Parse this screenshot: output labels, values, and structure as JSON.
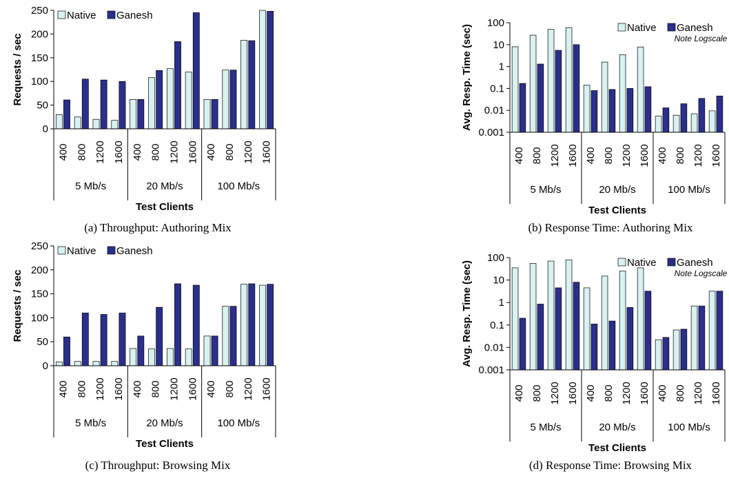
{
  "chart_data": [
    {
      "type": "bar",
      "caption": "(a) Throughput: Authoring Mix",
      "y_label": "Requests / sec",
      "x_label": "Test Clients",
      "groups": [
        {
          "name": "5 Mb/s",
          "categories": [
            "400",
            "800",
            "1200",
            "1600"
          ]
        },
        {
          "name": "20 Mb/s",
          "categories": [
            "400",
            "800",
            "1200",
            "1600"
          ]
        },
        {
          "name": "100 Mb/s",
          "categories": [
            "400",
            "800",
            "1200",
            "1600"
          ]
        }
      ],
      "series": [
        {
          "name": "Native",
          "color": "#d8f1f1",
          "values": [
            30,
            25,
            20,
            18,
            62,
            108,
            127,
            120,
            62,
            124,
            187,
            250
          ]
        },
        {
          "name": "Ganesh",
          "color": "#2b2f8c",
          "values": [
            61,
            105,
            103,
            100,
            62,
            123,
            184,
            245,
            62,
            124,
            186,
            248
          ]
        }
      ],
      "ylim": [
        0,
        250
      ],
      "yticks": [
        0,
        50,
        100,
        150,
        200,
        250
      ],
      "log": false,
      "legend": "upper left"
    },
    {
      "type": "bar",
      "caption": "(b) Response Time: Authoring Mix",
      "y_label": "Avg. Resp. Time (sec)",
      "x_label": "Test Clients",
      "annotation": "Note Logscale",
      "groups": [
        {
          "name": "5 Mb/s",
          "categories": [
            "400",
            "800",
            "1200",
            "1600"
          ]
        },
        {
          "name": "20 Mb/s",
          "categories": [
            "400",
            "800",
            "1200",
            "1600"
          ]
        },
        {
          "name": "100 Mb/s",
          "categories": [
            "400",
            "800",
            "1200",
            "1600"
          ]
        }
      ],
      "series": [
        {
          "name": "Native",
          "color": "#d8f1f1",
          "values": [
            8,
            27,
            50,
            60,
            0.14,
            1.6,
            3.5,
            7.8,
            0.0055,
            0.006,
            0.007,
            0.0095
          ]
        },
        {
          "name": "Ganesh",
          "color": "#2b2f8c",
          "values": [
            0.17,
            1.3,
            5.5,
            10,
            0.08,
            0.09,
            0.1,
            0.12,
            0.013,
            0.02,
            0.035,
            0.045
          ]
        }
      ],
      "ylim": [
        0.001,
        100
      ],
      "yticks": [
        0.001,
        0.01,
        0.1,
        1,
        10,
        100
      ],
      "log": true,
      "legend": "upper right"
    },
    {
      "type": "bar",
      "caption": "(c) Throughput: Browsing Mix",
      "y_label": "Requests / sec",
      "x_label": "Test Clients",
      "groups": [
        {
          "name": "5 Mb/s",
          "categories": [
            "400",
            "800",
            "1200",
            "1600"
          ]
        },
        {
          "name": "20 Mb/s",
          "categories": [
            "400",
            "800",
            "1200",
            "1600"
          ]
        },
        {
          "name": "100 Mb/s",
          "categories": [
            "400",
            "800",
            "1200",
            "1600"
          ]
        }
      ],
      "series": [
        {
          "name": "Native",
          "color": "#d8f1f1",
          "values": [
            8,
            9,
            9,
            9,
            36,
            35,
            36,
            35,
            62,
            124,
            170,
            168
          ]
        },
        {
          "name": "Ganesh",
          "color": "#2b2f8c",
          "values": [
            60,
            110,
            107,
            110,
            62,
            122,
            171,
            168,
            62,
            124,
            171,
            170
          ]
        }
      ],
      "ylim": [
        0,
        250
      ],
      "yticks": [
        0,
        50,
        100,
        150,
        200,
        250
      ],
      "log": false,
      "legend": "upper left"
    },
    {
      "type": "bar",
      "caption": "(d) Response Time: Browsing Mix",
      "y_label": "Avg. Resp. Time (sec)",
      "x_label": "Test Clients",
      "annotation": "Note Logscale",
      "groups": [
        {
          "name": "5 Mb/s",
          "categories": [
            "400",
            "800",
            "1200",
            "1600"
          ]
        },
        {
          "name": "20 Mb/s",
          "categories": [
            "400",
            "800",
            "1200",
            "1600"
          ]
        },
        {
          "name": "100 Mb/s",
          "categories": [
            "400",
            "800",
            "1200",
            "1600"
          ]
        }
      ],
      "series": [
        {
          "name": "Native",
          "color": "#d8f1f1",
          "values": [
            35,
            55,
            70,
            80,
            4.5,
            15,
            25,
            35,
            0.022,
            0.06,
            0.7,
            3.2
          ]
        },
        {
          "name": "Ganesh",
          "color": "#2b2f8c",
          "values": [
            0.2,
            0.85,
            4.5,
            8,
            0.11,
            0.15,
            0.6,
            3.2,
            0.028,
            0.065,
            0.7,
            3.2
          ]
        }
      ],
      "ylim": [
        0.001,
        100
      ],
      "yticks": [
        0.001,
        0.01,
        0.1,
        1,
        10,
        100
      ],
      "log": true,
      "legend": "upper right"
    }
  ]
}
